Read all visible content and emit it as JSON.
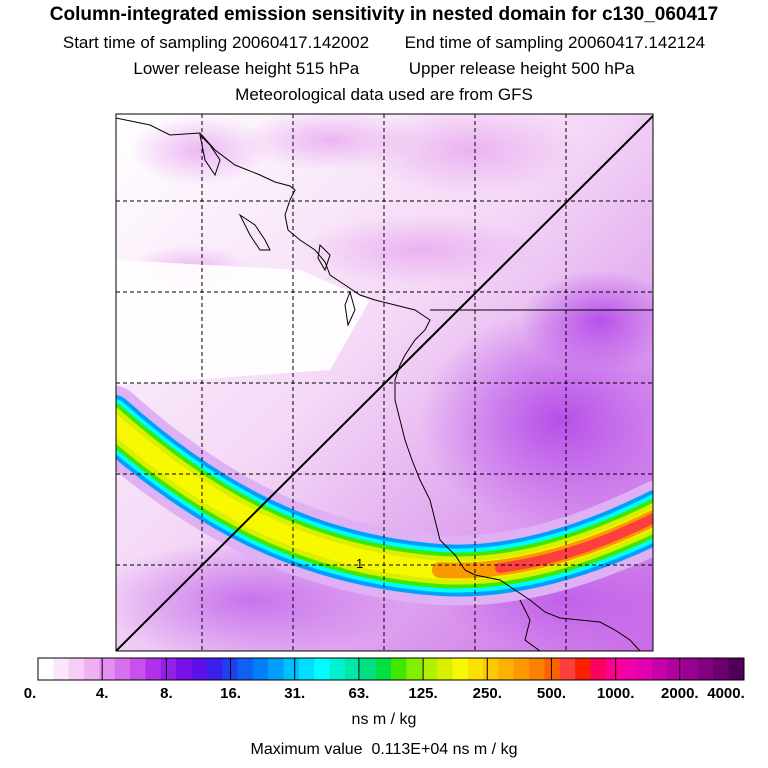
{
  "header": {
    "title": "Column-integrated emission sensitivity in nested domain for c130_060417",
    "start_label": "Start time of sampling",
    "start_value": "20060417.142002",
    "end_label": "End time of sampling",
    "end_value": "20060417.142124",
    "lower_label": "Lower release height",
    "lower_value": "515 hPa",
    "upper_label": "Upper release height",
    "upper_value": "500 hPa",
    "met_line": "Meteorological data used are from GFS"
  },
  "map": {
    "contour_label": "1",
    "colors": {
      "coastline": "#000000",
      "grid": "#000000",
      "flight_track": "#000000"
    }
  },
  "legend": {
    "ticks": [
      "0.",
      "4.",
      "8.",
      "16.",
      "31.",
      "63.",
      "125.",
      "250.",
      "500.",
      "1000.",
      "2000.",
      "4000."
    ],
    "colors": [
      "#ffffff",
      "#fce6fc",
      "#f8ccf8",
      "#f0b0f4",
      "#e490f0",
      "#d870ee",
      "#c850ec",
      "#b030ea",
      "#9420e8",
      "#7a10e8",
      "#5c10ea",
      "#3a20ec",
      "#2040f0",
      "#1060f4",
      "#0080f8",
      "#00a0fa",
      "#00c0fc",
      "#00e0fe",
      "#00fcfc",
      "#00f0d0",
      "#00e8a8",
      "#00e080",
      "#00e040",
      "#40e800",
      "#80f000",
      "#b0f000",
      "#d8f000",
      "#f8f800",
      "#fce000",
      "#fcc800",
      "#fcb000",
      "#fc9800",
      "#fc8000",
      "#fc6000",
      "#fc4040",
      "#fc2000",
      "#fc0060",
      "#fc0090",
      "#f000a8",
      "#e000b0",
      "#c800a8",
      "#b000a0",
      "#980090",
      "#800080",
      "#6a0070",
      "#500058"
    ],
    "unit": "ns m / kg",
    "max_label": "Maximum value",
    "max_value": "0.113E+04 ns m / kg"
  }
}
